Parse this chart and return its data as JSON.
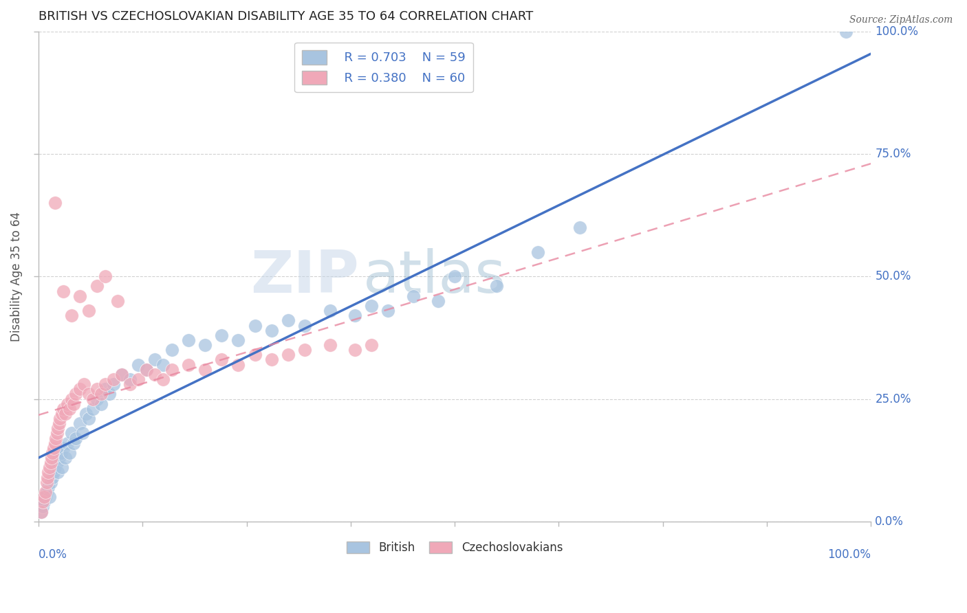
{
  "title": "BRITISH VS CZECHOSLOVAKIAN DISABILITY AGE 35 TO 64 CORRELATION CHART",
  "source": "Source: ZipAtlas.com",
  "ylabel": "Disability Age 35 to 64",
  "watermark_zip": "ZIP",
  "watermark_atlas": "atlas",
  "legend_british_r": "R = 0.703",
  "legend_british_n": "N = 59",
  "legend_czech_r": "R = 0.380",
  "legend_czech_n": "N = 60",
  "british_color": "#a8c4e0",
  "czech_color": "#f0a8b8",
  "british_line_color": "#4472c4",
  "czech_line_color": "#e888a0",
  "title_color": "#222222",
  "axis_label_color": "#4472c4",
  "grid_color": "#cccccc",
  "british_x": [
    0.3,
    0.5,
    0.7,
    0.8,
    1.0,
    1.2,
    1.3,
    1.5,
    1.7,
    1.8,
    2.0,
    2.2,
    2.3,
    2.5,
    2.7,
    2.8,
    3.0,
    3.2,
    3.5,
    3.7,
    4.0,
    4.2,
    4.5,
    5.0,
    5.3,
    5.7,
    6.0,
    6.5,
    7.0,
    7.5,
    8.0,
    8.5,
    9.0,
    10.0,
    11.0,
    12.0,
    13.0,
    14.0,
    15.0,
    16.0,
    18.0,
    20.0,
    22.0,
    24.0,
    26.0,
    28.0,
    30.0,
    32.0,
    35.0,
    38.0,
    40.0,
    42.0,
    45.0,
    48.0,
    50.0,
    55.0,
    60.0,
    65.0,
    97.0
  ],
  "british_y": [
    2.0,
    3.0,
    4.0,
    5.0,
    6.0,
    7.0,
    5.0,
    8.0,
    9.0,
    10.0,
    11.0,
    12.0,
    10.0,
    13.0,
    14.0,
    11.0,
    15.0,
    13.0,
    16.0,
    14.0,
    18.0,
    16.0,
    17.0,
    20.0,
    18.0,
    22.0,
    21.0,
    23.0,
    25.0,
    24.0,
    27.0,
    26.0,
    28.0,
    30.0,
    29.0,
    32.0,
    31.0,
    33.0,
    32.0,
    35.0,
    37.0,
    36.0,
    38.0,
    37.0,
    40.0,
    39.0,
    41.0,
    40.0,
    43.0,
    42.0,
    44.0,
    43.0,
    46.0,
    45.0,
    50.0,
    48.0,
    55.0,
    60.0,
    100.0
  ],
  "czech_x": [
    0.3,
    0.5,
    0.7,
    0.8,
    1.0,
    1.1,
    1.2,
    1.3,
    1.5,
    1.6,
    1.7,
    1.8,
    2.0,
    2.1,
    2.2,
    2.3,
    2.5,
    2.6,
    2.8,
    3.0,
    3.2,
    3.5,
    3.7,
    4.0,
    4.2,
    4.5,
    5.0,
    5.5,
    6.0,
    6.5,
    7.0,
    7.5,
    8.0,
    9.0,
    10.0,
    11.0,
    12.0,
    13.0,
    14.0,
    15.0,
    16.0,
    18.0,
    20.0,
    22.0,
    24.0,
    26.0,
    28.0,
    30.0,
    32.0,
    35.0,
    38.0,
    40.0,
    3.0,
    4.0,
    5.0,
    6.0,
    7.0,
    8.0,
    9.5,
    2.0
  ],
  "czech_y": [
    2.0,
    4.0,
    5.0,
    6.0,
    8.0,
    9.0,
    10.0,
    11.0,
    12.0,
    13.0,
    14.0,
    15.0,
    16.0,
    17.0,
    18.0,
    19.0,
    20.0,
    21.0,
    22.0,
    23.0,
    22.0,
    24.0,
    23.0,
    25.0,
    24.0,
    26.0,
    27.0,
    28.0,
    26.0,
    25.0,
    27.0,
    26.0,
    28.0,
    29.0,
    30.0,
    28.0,
    29.0,
    31.0,
    30.0,
    29.0,
    31.0,
    32.0,
    31.0,
    33.0,
    32.0,
    34.0,
    33.0,
    34.0,
    35.0,
    36.0,
    35.0,
    36.0,
    47.0,
    42.0,
    46.0,
    43.0,
    48.0,
    50.0,
    45.0,
    65.0
  ]
}
